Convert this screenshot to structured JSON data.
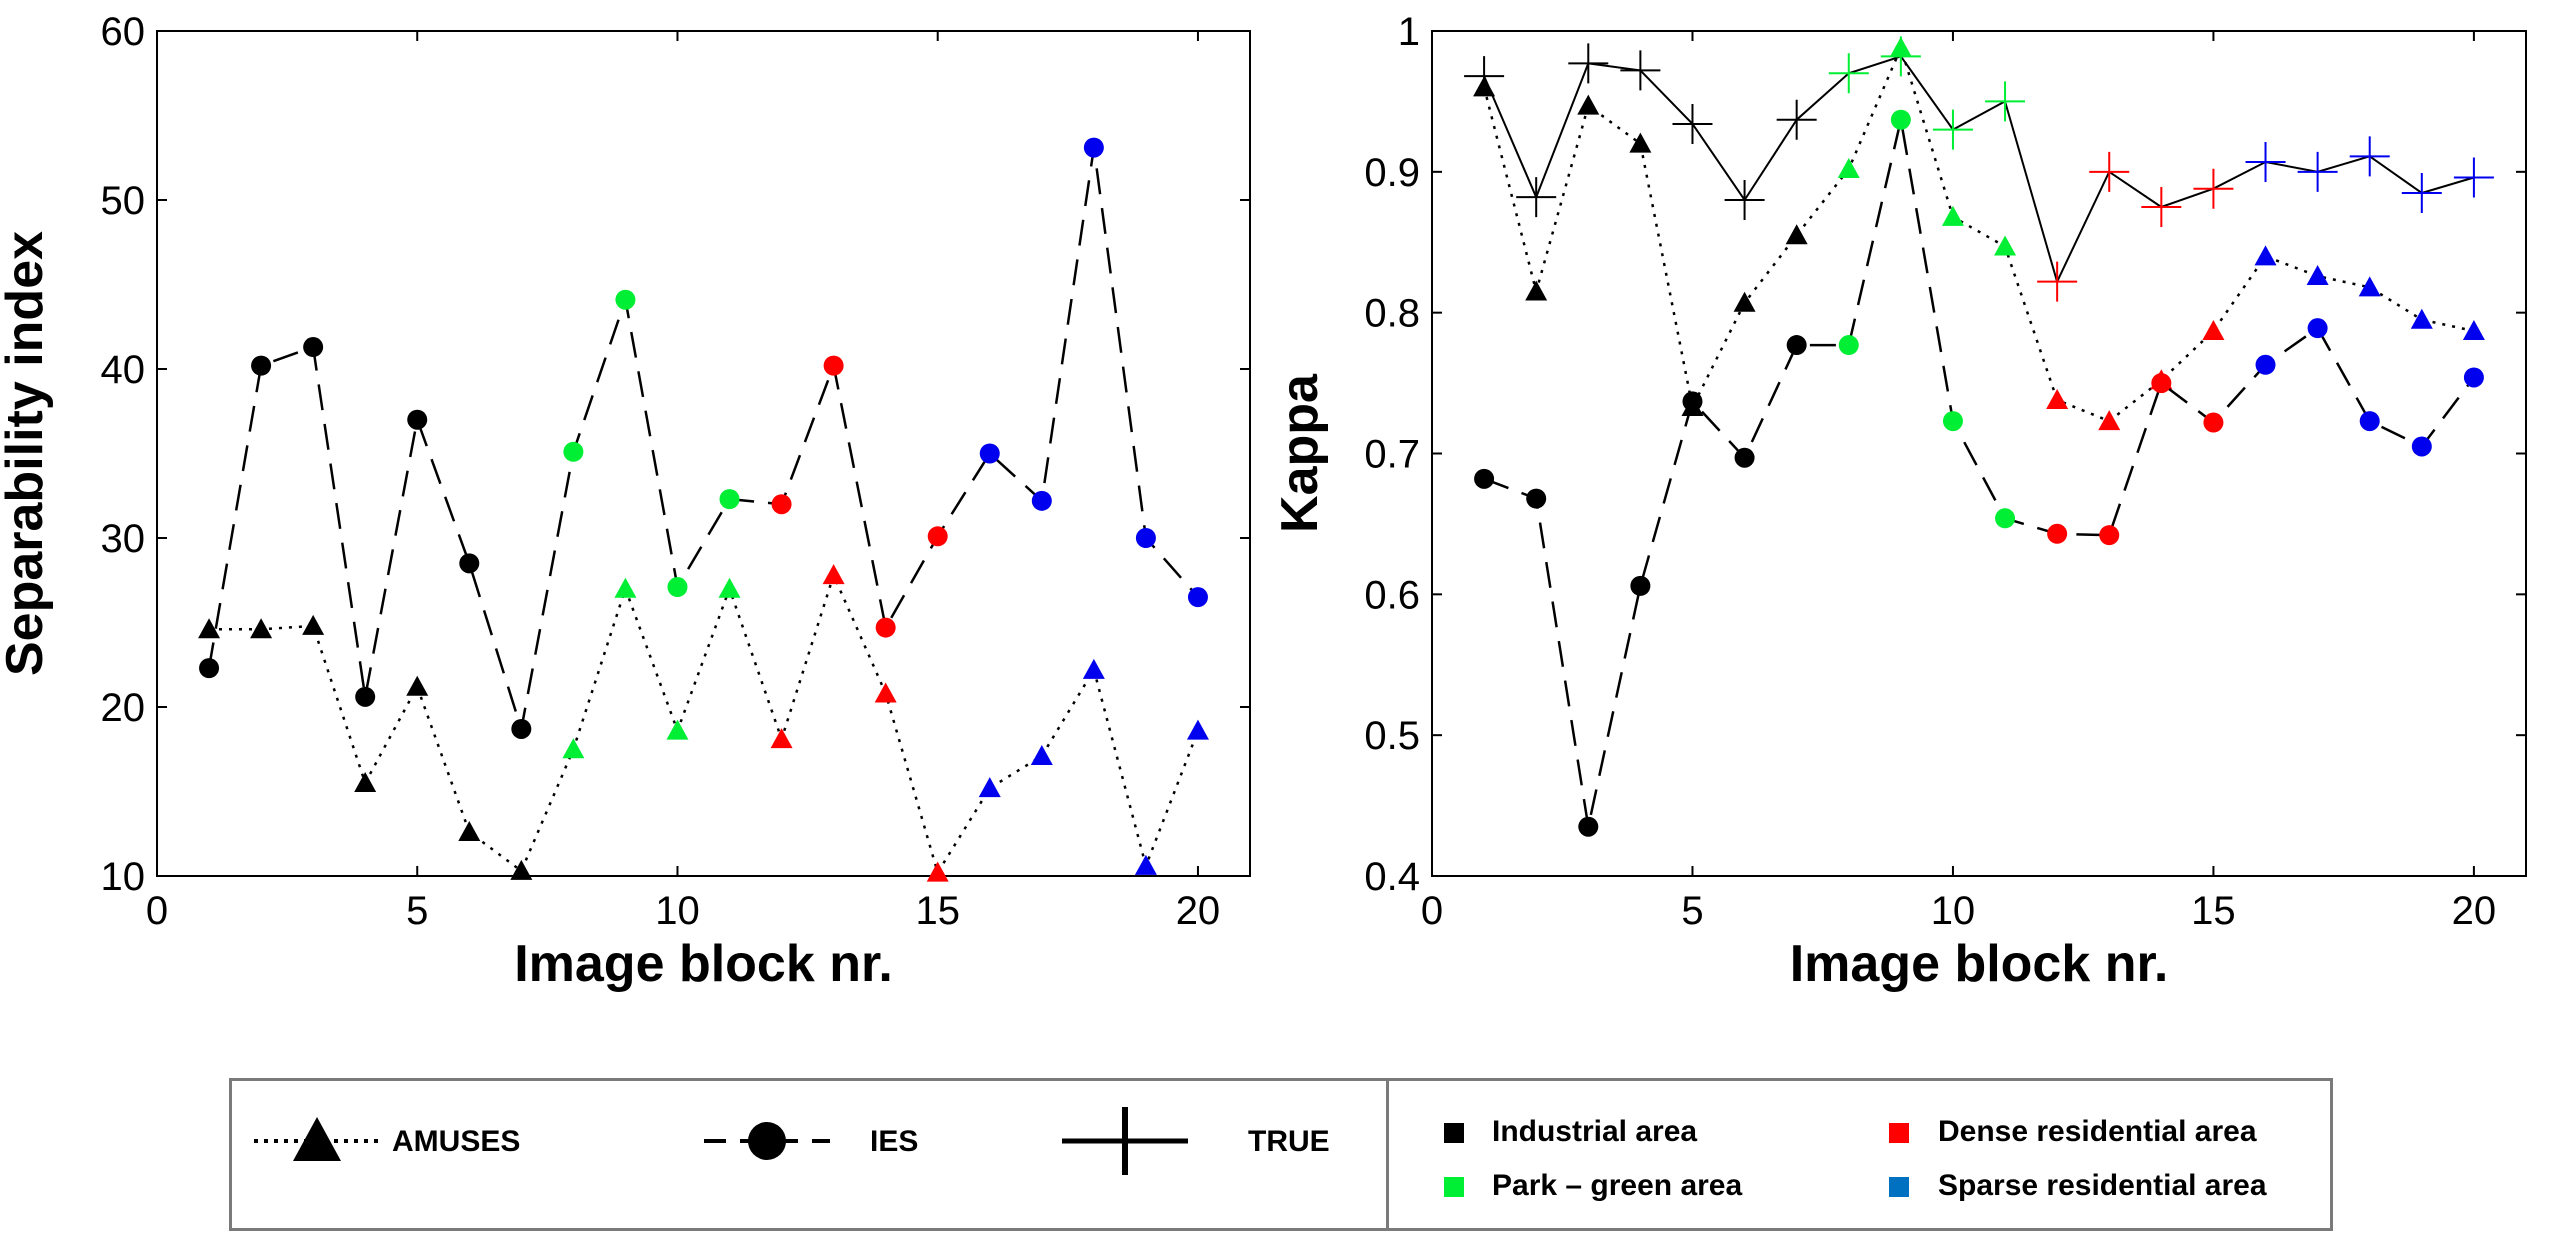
{
  "colors": {
    "industrial": "#000000",
    "park": "#00ee33",
    "dense": "#ff0000",
    "sparse": "#0000ee",
    "sparse_swatch": "#0070c0",
    "axis": "#000000",
    "frame": "#7a7a7a"
  },
  "point_classes": [
    "industrial",
    "industrial",
    "industrial",
    "industrial",
    "industrial",
    "industrial",
    "industrial",
    "park",
    "park",
    "park",
    "park",
    "dense",
    "dense",
    "dense",
    "dense",
    "sparse",
    "sparse",
    "sparse",
    "sparse",
    "sparse"
  ],
  "chart_data": [
    {
      "type": "line",
      "title": "",
      "xlabel": "Image block nr.",
      "ylabel": "Separability index",
      "xlim": [
        0,
        21
      ],
      "ylim": [
        10,
        60
      ],
      "xticks": [
        "0",
        "5",
        "10",
        "15",
        "20"
      ],
      "xtick_values": [
        0,
        5,
        10,
        15,
        20
      ],
      "yticks": [
        "10",
        "20",
        "30",
        "40",
        "50",
        "60"
      ],
      "ytick_values": [
        10,
        20,
        30,
        40,
        50,
        60
      ],
      "x": [
        1,
        2,
        3,
        4,
        5,
        6,
        7,
        8,
        9,
        10,
        11,
        12,
        13,
        14,
        15,
        16,
        17,
        18,
        19,
        20
      ],
      "series": [
        {
          "name": "AMUSES",
          "marker": "triangle",
          "line": "dotted",
          "values": [
            24.6,
            24.6,
            24.8,
            15.5,
            21.2,
            12.6,
            10.3,
            17.5,
            27.0,
            18.6,
            27.0,
            18.1,
            27.8,
            20.8,
            10.2,
            15.2,
            17.1,
            22.2,
            10.6,
            18.6
          ]
        },
        {
          "name": "IES",
          "marker": "circle",
          "line": "dashed",
          "values": [
            22.3,
            40.2,
            41.3,
            20.6,
            37.0,
            28.5,
            18.7,
            35.1,
            44.1,
            27.1,
            32.3,
            32.0,
            40.2,
            24.7,
            30.1,
            35.0,
            32.2,
            53.1,
            30.0,
            26.5
          ]
        }
      ]
    },
    {
      "type": "line",
      "title": "",
      "xlabel": "Image block nr.",
      "ylabel": "Kappa",
      "xlim": [
        0,
        21
      ],
      "ylim": [
        0.4,
        1.0
      ],
      "xticks": [
        "0",
        "5",
        "10",
        "15",
        "20"
      ],
      "xtick_values": [
        0,
        5,
        10,
        15,
        20
      ],
      "yticks": [
        "0.4",
        "0.5",
        "0.6",
        "0.7",
        "0.8",
        "0.9",
        "1"
      ],
      "ytick_values": [
        0.4,
        0.5,
        0.6,
        0.7,
        0.8,
        0.9,
        1.0
      ],
      "x": [
        1,
        2,
        3,
        4,
        5,
        6,
        7,
        8,
        9,
        10,
        11,
        12,
        13,
        14,
        15,
        16,
        17,
        18,
        19,
        20
      ],
      "series": [
        {
          "name": "TRUE",
          "marker": "plus",
          "line": "solid",
          "values": [
            0.968,
            0.882,
            0.977,
            0.972,
            0.934,
            0.88,
            0.937,
            0.97,
            0.982,
            0.93,
            0.95,
            0.822,
            0.9,
            0.875,
            0.888,
            0.907,
            0.9,
            0.911,
            0.885,
            0.896
          ]
        },
        {
          "name": "AMUSES",
          "marker": "triangle",
          "line": "dotted",
          "values": [
            0.96,
            0.815,
            0.947,
            0.92,
            0.733,
            0.807,
            0.855,
            0.902,
            0.988,
            0.868,
            0.847,
            0.738,
            0.723,
            0.752,
            0.787,
            0.84,
            0.826,
            0.818,
            0.795,
            0.787
          ]
        },
        {
          "name": "IES",
          "marker": "circle",
          "line": "dashed",
          "values": [
            0.682,
            0.668,
            0.435,
            0.606,
            0.737,
            0.697,
            0.777,
            0.777,
            0.937,
            0.723,
            0.654,
            0.643,
            0.642,
            0.75,
            0.722,
            0.763,
            0.789,
            0.723,
            0.705,
            0.754
          ]
        }
      ]
    }
  ],
  "legend": {
    "series_items": [
      {
        "label": "AMUSES",
        "marker": "triangle",
        "line": "dotted"
      },
      {
        "label": "IES",
        "marker": "circle",
        "line": "dashed"
      },
      {
        "label": "TRUE",
        "marker": "plus",
        "line": "solid"
      }
    ],
    "class_items": [
      {
        "label": "Industrial area",
        "color": "#000000"
      },
      {
        "label": "Dense residential area",
        "color": "#ff0000"
      },
      {
        "label": "Park – green area",
        "color": "#00ee33"
      },
      {
        "label": "Sparse residential area",
        "color": "#0070c0"
      }
    ]
  }
}
